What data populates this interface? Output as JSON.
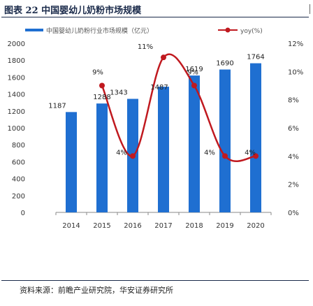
{
  "figure": {
    "title": "图表 22 中国婴幼儿奶粉市场规模",
    "source": "资料来源：前瞻产业研究院，华安证券研究所"
  },
  "chart_data": {
    "type": "bar",
    "title": "",
    "categories": [
      "2014",
      "2015",
      "2016",
      "2017",
      "2018",
      "2019",
      "2020"
    ],
    "series": [
      {
        "name": "中国婴幼儿奶粉行业市场规模（亿元）",
        "type": "bar",
        "axis": "left",
        "values": [
          1187,
          1288,
          1343,
          1487,
          1619,
          1690,
          1764
        ],
        "data_labels": [
          "1187",
          "1288",
          "1343",
          "1487",
          "1619",
          "1690",
          "1764"
        ],
        "color": "#1f6fd1"
      },
      {
        "name": "yoy(%)",
        "type": "line",
        "axis": "right",
        "values": [
          null,
          9,
          4,
          11,
          9,
          4,
          4
        ],
        "data_labels": [
          "",
          "9%",
          "4%",
          "11%",
          "9%",
          "4%",
          "4%"
        ],
        "color": "#c0191f"
      }
    ],
    "y_left": {
      "min": 0,
      "max": 2000,
      "ticks": [
        "0",
        "200",
        "400",
        "600",
        "800",
        "1000",
        "1200",
        "1400",
        "1600",
        "1800",
        "2000"
      ]
    },
    "y_right": {
      "min": 0,
      "max": 12,
      "ticks": [
        "0%",
        "2%",
        "4%",
        "6%",
        "8%",
        "10%",
        "12%"
      ]
    },
    "grid": false,
    "legend": "top"
  }
}
